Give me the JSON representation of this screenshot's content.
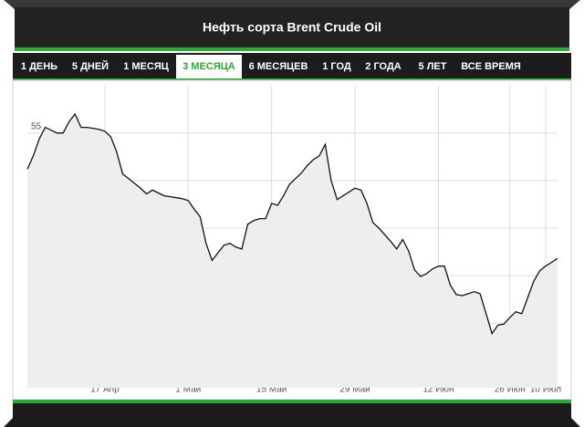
{
  "tabs": [
    {
      "label": "1 ДЕНЬ"
    },
    {
      "label": "5 ДНЕЙ"
    },
    {
      "label": "1 МЕСЯЦ"
    },
    {
      "label": "3 МЕСЯЦА",
      "active": true
    },
    {
      "label": "6 МЕСЯЦЕВ"
    },
    {
      "label": "1 ГОД"
    },
    {
      "label": "2 ГОДА"
    },
    {
      "label": "5 ЛЕТ"
    },
    {
      "label": "ВСЕ ВРЕМЯ"
    }
  ],
  "chart_data": {
    "type": "area",
    "title": "Нефть сорта Brent Crude Oil",
    "categories": [
      null,
      null,
      null,
      null,
      null,
      null,
      null,
      null,
      null,
      null,
      null,
      null,
      null,
      "17 Апр",
      null,
      null,
      null,
      null,
      null,
      null,
      null,
      null,
      null,
      null,
      null,
      null,
      null,
      "1 Май",
      null,
      null,
      null,
      null,
      null,
      null,
      null,
      null,
      null,
      null,
      null,
      null,
      null,
      "15 Май",
      null,
      null,
      null,
      null,
      null,
      null,
      null,
      null,
      null,
      null,
      null,
      null,
      null,
      "29 Май",
      null,
      null,
      null,
      null,
      null,
      null,
      null,
      null,
      null,
      null,
      null,
      null,
      null,
      "12 Июн",
      null,
      null,
      null,
      null,
      null,
      null,
      null,
      null,
      null,
      null,
      null,
      "26 Июн",
      null,
      null,
      null,
      null,
      null,
      "10 Июл",
      null,
      null
    ],
    "values": [
      53.1,
      53.8,
      54.7,
      55.3,
      55.15,
      55.0,
      55.0,
      55.6,
      56.0,
      55.3,
      55.3,
      55.25,
      55.2,
      55.1,
      54.8,
      54.0,
      52.85,
      52.6,
      52.35,
      52.1,
      51.8,
      52.0,
      51.85,
      51.7,
      51.65,
      51.6,
      51.55,
      51.45,
      51.0,
      50.6,
      49.2,
      48.3,
      48.7,
      49.1,
      49.2,
      49.0,
      48.9,
      50.2,
      50.4,
      50.5,
      50.5,
      51.3,
      51.2,
      51.7,
      52.3,
      52.6,
      52.9,
      53.3,
      53.6,
      53.8,
      54.4,
      52.5,
      51.5,
      51.7,
      51.9,
      52.1,
      52.0,
      51.3,
      50.3,
      50.0,
      49.65,
      49.3,
      48.9,
      49.4,
      48.8,
      47.8,
      47.45,
      47.6,
      47.85,
      48.0,
      48.0,
      47.0,
      46.5,
      46.45,
      46.55,
      46.65,
      46.55,
      45.5,
      44.45,
      44.9,
      44.95,
      45.3,
      45.6,
      45.5,
      46.35,
      47.2,
      47.75,
      48.0,
      48.2,
      48.4
    ],
    "color": "#111111",
    "fill_color": "#eeeeee",
    "ylim": [
      41.6,
      57.2
    ],
    "yticks": [
      42.5,
      45,
      47.5,
      50,
      52.5,
      55
    ],
    "grid": true
  }
}
